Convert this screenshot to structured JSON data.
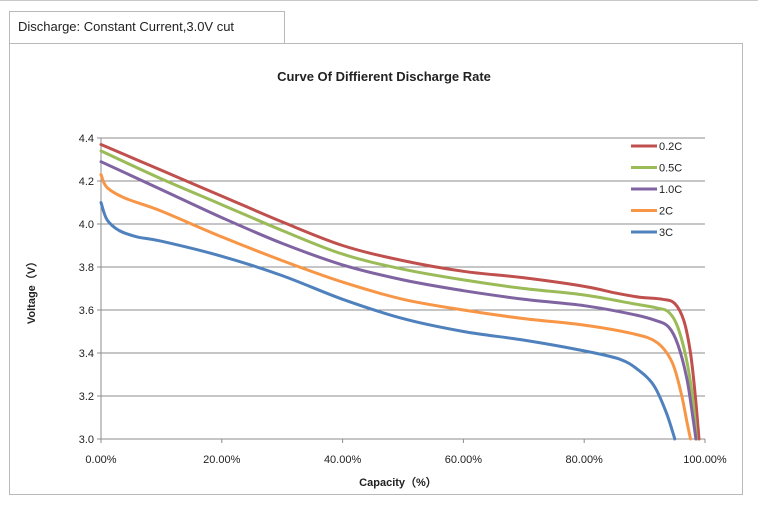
{
  "tab": {
    "label": "Discharge: Constant Current,3.0V cut"
  },
  "chart_data": {
    "type": "line",
    "title": "Curve Of Diffierent Discharge Rate",
    "xlabel": "Capacity（%）",
    "ylabel": "Voltage（V）",
    "xlim": [
      0,
      100
    ],
    "ylim": [
      3.0,
      4.4
    ],
    "xticks": [
      0,
      20,
      40,
      60,
      80,
      100
    ],
    "xtick_labels": [
      "0.00%",
      "20.00%",
      "40.00%",
      "60.00%",
      "80.00%",
      "100.00%"
    ],
    "yticks": [
      3.0,
      3.2,
      3.4,
      3.6,
      3.8,
      4.0,
      4.2,
      4.4
    ],
    "ytick_labels": [
      "3.0",
      "3.2",
      "3.4",
      "3.6",
      "3.8",
      "4.0",
      "4.2",
      "4.4"
    ],
    "grid": "horizontal",
    "legend": "top-right",
    "series": [
      {
        "name": "0.2C",
        "color": "#c0504d",
        "points": [
          [
            0,
            4.37
          ],
          [
            10,
            4.25
          ],
          [
            20,
            4.13
          ],
          [
            30,
            4.01
          ],
          [
            40,
            3.9
          ],
          [
            50,
            3.83
          ],
          [
            60,
            3.78
          ],
          [
            70,
            3.75
          ],
          [
            80,
            3.71
          ],
          [
            85,
            3.68
          ],
          [
            89,
            3.66
          ],
          [
            93,
            3.65
          ],
          [
            95,
            3.63
          ],
          [
            96.5,
            3.55
          ],
          [
            97.6,
            3.4
          ],
          [
            98.4,
            3.2
          ],
          [
            99,
            3.0
          ]
        ]
      },
      {
        "name": "0.5C",
        "color": "#9bbb59",
        "points": [
          [
            0,
            4.34
          ],
          [
            10,
            4.21
          ],
          [
            20,
            4.09
          ],
          [
            30,
            3.97
          ],
          [
            40,
            3.86
          ],
          [
            50,
            3.79
          ],
          [
            60,
            3.74
          ],
          [
            70,
            3.7
          ],
          [
            80,
            3.67
          ],
          [
            88,
            3.63
          ],
          [
            92,
            3.61
          ],
          [
            94,
            3.59
          ],
          [
            95.5,
            3.52
          ],
          [
            97,
            3.36
          ],
          [
            98,
            3.18
          ],
          [
            98.6,
            3.0
          ]
        ]
      },
      {
        "name": "1.0C",
        "color": "#8064a2",
        "points": [
          [
            0,
            4.29
          ],
          [
            10,
            4.16
          ],
          [
            20,
            4.03
          ],
          [
            30,
            3.91
          ],
          [
            40,
            3.81
          ],
          [
            50,
            3.74
          ],
          [
            60,
            3.69
          ],
          [
            70,
            3.65
          ],
          [
            80,
            3.62
          ],
          [
            88,
            3.58
          ],
          [
            92,
            3.55
          ],
          [
            94,
            3.52
          ],
          [
            95.5,
            3.44
          ],
          [
            97,
            3.28
          ],
          [
            98,
            3.1
          ],
          [
            98.5,
            3.0
          ]
        ]
      },
      {
        "name": "2C",
        "color": "#f79646",
        "points": [
          [
            0,
            4.23
          ],
          [
            1,
            4.17
          ],
          [
            4,
            4.12
          ],
          [
            10,
            4.06
          ],
          [
            20,
            3.94
          ],
          [
            30,
            3.83
          ],
          [
            40,
            3.73
          ],
          [
            50,
            3.65
          ],
          [
            60,
            3.6
          ],
          [
            70,
            3.56
          ],
          [
            80,
            3.53
          ],
          [
            88,
            3.49
          ],
          [
            92,
            3.45
          ],
          [
            94.5,
            3.36
          ],
          [
            96,
            3.22
          ],
          [
            97,
            3.08
          ],
          [
            97.6,
            3.0
          ]
        ]
      },
      {
        "name": "3C",
        "color": "#4f81bd",
        "points": [
          [
            0,
            4.1
          ],
          [
            1,
            4.02
          ],
          [
            3,
            3.97
          ],
          [
            6,
            3.94
          ],
          [
            10,
            3.92
          ],
          [
            20,
            3.85
          ],
          [
            30,
            3.76
          ],
          [
            40,
            3.65
          ],
          [
            50,
            3.56
          ],
          [
            60,
            3.5
          ],
          [
            70,
            3.46
          ],
          [
            80,
            3.41
          ],
          [
            86,
            3.37
          ],
          [
            89,
            3.32
          ],
          [
            91.5,
            3.25
          ],
          [
            93.5,
            3.13
          ],
          [
            95,
            3.0
          ]
        ]
      }
    ]
  }
}
